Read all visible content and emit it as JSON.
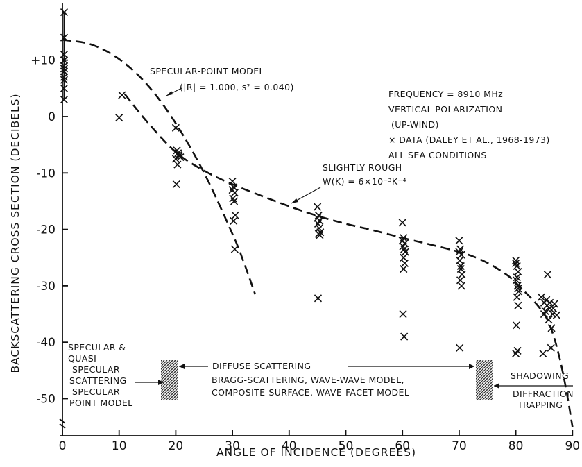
{
  "chart_data": {
    "type": "scatter",
    "xlabel": "ANGLE OF INCIDENCE (DEGREES)",
    "ylabel": "BACKSCATTERING CROSS SECTION (DECIBELS)",
    "xlim": [
      0,
      90
    ],
    "ylim": [
      -55,
      18
    ],
    "x_ticks": [
      0,
      10,
      20,
      30,
      40,
      50,
      60,
      70,
      80,
      90
    ],
    "x_tick_labels": [
      "0",
      "10",
      "20",
      "30",
      "40",
      "50",
      "60",
      "70",
      "80",
      "90"
    ],
    "y_ticks": [
      10,
      0,
      -10,
      -20,
      -30,
      -40,
      -50
    ],
    "y_tick_labels": [
      "+10",
      "0",
      "-10",
      "-20",
      "-30",
      "-40",
      "-50"
    ],
    "grid": false,
    "data_points": {
      "marker": "x",
      "x": [
        0.3,
        0.3,
        0.3,
        0.3,
        0.3,
        0.3,
        0.3,
        0.3,
        0.3,
        0.3,
        0.3,
        10,
        10.5,
        20,
        20.2,
        20.4,
        20.6,
        20.8,
        20.3,
        20.1,
        20.5,
        20,
        30,
        30.2,
        30.4,
        30.1,
        30.3,
        30.5,
        30.2,
        30.4,
        30,
        45,
        45.2,
        45.4,
        45.1,
        45.3,
        45.5,
        45.2,
        45.4,
        45.1,
        45,
        60,
        60.2,
        60.4,
        60.1,
        60.3,
        60.5,
        60.2,
        60.4,
        60.1,
        60.3,
        60,
        60.2,
        70,
        70.2,
        70.4,
        70.1,
        70.3,
        70.5,
        70.2,
        70.4,
        70.1,
        70.3,
        70,
        80,
        80.2,
        80.4,
        80.1,
        80.3,
        80.5,
        80.2,
        80.4,
        80.1,
        80.3,
        80,
        80.2,
        80.4,
        80,
        84.5,
        85,
        85.5,
        86,
        86.5,
        85.2,
        85.8,
        86.3,
        84.8,
        85.4,
        86,
        86.6,
        86.2,
        85.6,
        85,
        87.2,
        86.8
      ],
      "y": [
        18.5,
        14,
        10,
        9,
        8,
        7,
        6.5,
        5,
        3,
        8.5,
        11,
        -0.2,
        3.8,
        -2,
        -6,
        -6.5,
        -7,
        -7.2,
        -8.5,
        -12,
        -6.8,
        -7.5,
        -11.5,
        -12.5,
        -13.5,
        -14.5,
        -15,
        -17.5,
        -18.5,
        -23.5,
        -13,
        -16,
        -17.5,
        -18.5,
        -19,
        -19.8,
        -20.5,
        -20.8,
        -21,
        -32.2,
        -18,
        -18.8,
        -21.5,
        -22.5,
        -23,
        -23.5,
        -24,
        -25,
        -26,
        -35,
        -39,
        -22,
        -27,
        -22,
        -23.5,
        -24.5,
        -25.5,
        -26.5,
        -28,
        -29,
        -30,
        -41,
        -27,
        -24,
        -26,
        -26.5,
        -27.5,
        -29,
        -30,
        -31,
        -32,
        -33.5,
        -37,
        -41.5,
        -42,
        -28.5,
        -30.5,
        -25.5,
        -32,
        -33,
        -33.5,
        -34,
        -35,
        -34.5,
        -36,
        -37.5,
        -42,
        -32.5,
        -33,
        -34,
        -41,
        -28,
        -35,
        -35.2,
        -33.2
      ]
    },
    "curves": [
      {
        "x": [
          0,
          5,
          10,
          15,
          20,
          25,
          30,
          32,
          34
        ],
        "y": [
          13.6,
          12.8,
          10.2,
          5.6,
          -1.2,
          -10,
          -20.8,
          -25.8,
          -31.5
        ]
      },
      {
        "x": [
          11,
          15,
          20,
          25,
          30,
          35,
          40,
          45,
          50,
          55,
          60,
          65,
          70,
          73,
          76,
          79,
          81,
          83,
          85,
          86,
          87,
          88,
          89,
          90
        ],
        "y": [
          4,
          -1,
          -6.3,
          -9.6,
          -12,
          -14,
          -15.9,
          -17.6,
          -19,
          -20.2,
          -21.5,
          -22.7,
          -24,
          -25,
          -26.5,
          -28.5,
          -30.5,
          -32.5,
          -35,
          -37,
          -40,
          -44,
          -49,
          -55
        ]
      }
    ],
    "annotations": {
      "specular_model_title": "SPECULAR-POINT MODEL",
      "specular_model_params": "(|R| = 1.000, s² = 0.040)",
      "conditions": [
        "FREQUENCY = 8910 MHz",
        "VERTICAL POLARIZATION",
        "(UP-WIND)",
        "× DATA (DALEY ET AL., 1968-1973)",
        "ALL SEA CONDITIONS"
      ],
      "slightly_rough_title": "SLIGHTLY ROUGH",
      "slightly_rough_formula": "W(K) = 6×10⁻³K⁻⁴",
      "specular_region": [
        "SPECULAR &",
        "QUASI-",
        "SPECULAR",
        "SCATTERING",
        "SPECULAR",
        "POINT MODEL"
      ],
      "diffuse_region": [
        "DIFFUSE SCATTERING",
        "BRAGG-SCATTERING, WAVE-WAVE MODEL,",
        "COMPOSITE-SURFACE, WAVE-FACET MODEL"
      ],
      "shadowing_region": [
        "SHADOWING",
        "DIFFRACTION",
        "TRAPPING"
      ]
    }
  }
}
